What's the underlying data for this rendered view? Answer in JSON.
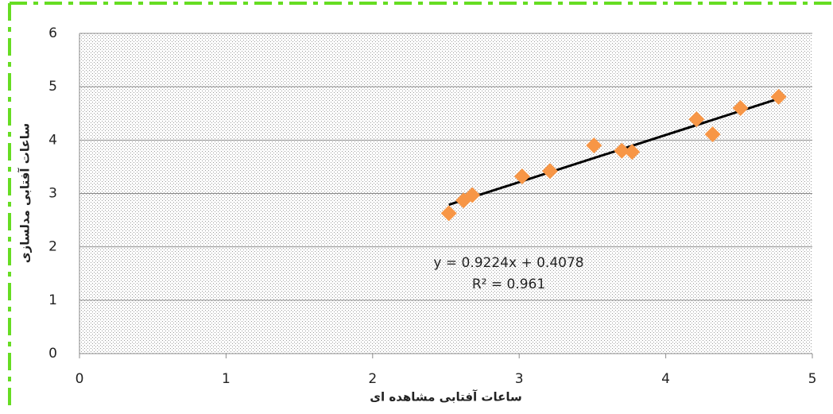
{
  "chart_data": {
    "type": "scatter",
    "x_label": "ساعات آفتابی مشاهده ای",
    "y_label": "ساعات آفتابی مدلسازی",
    "annotations": [
      "y = 0.9224x + 0.4078",
      "R² = 0.961"
    ],
    "series": [
      {
        "color": "#f79646",
        "x": [
          2.52,
          2.62,
          2.68,
          3.02,
          3.21,
          3.51,
          3.7,
          3.77,
          4.21,
          4.32,
          4.51,
          4.77
        ],
        "values": [
          2.63,
          2.87,
          2.97,
          3.32,
          3.42,
          3.9,
          3.8,
          3.78,
          4.39,
          4.11,
          4.6,
          4.81
        ]
      }
    ],
    "xlim": [
      0,
      5
    ],
    "xticks": [
      0,
      1,
      2,
      3,
      4,
      5
    ],
    "ylim": [
      0,
      6
    ],
    "yticks": [
      0,
      1,
      2,
      3,
      4,
      5,
      6
    ],
    "grid": true,
    "trendline": "linear"
  }
}
